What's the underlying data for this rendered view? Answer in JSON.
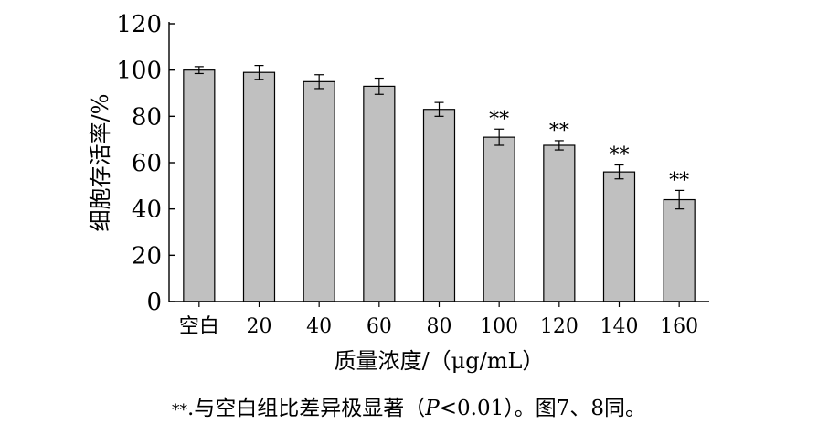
{
  "chart_data": {
    "type": "bar",
    "categories": [
      "空白",
      "20",
      "40",
      "60",
      "80",
      "100",
      "120",
      "140",
      "160"
    ],
    "series": [
      {
        "values": [
          100,
          99,
          95,
          93,
          83,
          71,
          67.5,
          56,
          44
        ],
        "errors": [
          1.5,
          3,
          3,
          3.5,
          3,
          3.5,
          2,
          3,
          4
        ]
      }
    ],
    "significance": [
      "",
      "",
      "",
      "",
      "",
      "**",
      "**",
      "**",
      "**"
    ],
    "xlabel": "质量浓度/（μg/mL）",
    "ylabel": "细胞存活率/%",
    "ylim": [
      0,
      120
    ],
    "yticks": [
      0,
      20,
      40,
      60,
      80,
      100,
      120
    ],
    "grid": false,
    "bar_color": "#c0c0c0"
  },
  "caption": {
    "stars": "**",
    "text": ".与空白组比差异极显著（",
    "p_symbol": "P",
    "p_value": "<0.01）。图7、8同。"
  }
}
